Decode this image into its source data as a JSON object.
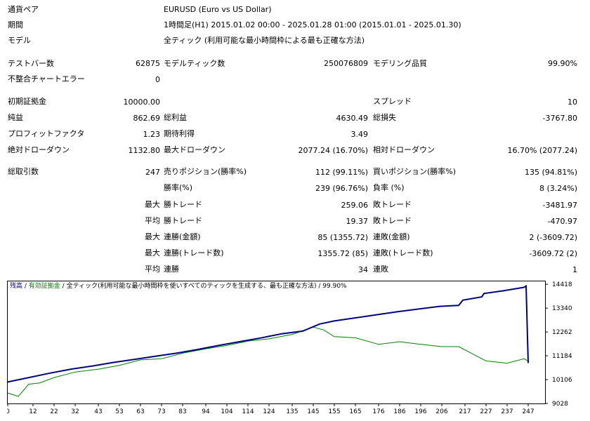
{
  "header": {
    "pair_label": "通貨ペア",
    "pair_value": "EURUSD (Euro vs US Dollar)",
    "period_label": "期間",
    "period_value": "1時間足(H1) 2015.01.02 00:00 - 2025.01.28 01:00 (2015.01.01 - 2025.01.30)",
    "model_label": "モデル",
    "model_value": "全ティック (利用可能な最小時間枠による最も正確な方法)"
  },
  "stats": {
    "bars_label": "テストバー数",
    "bars_value": "62875",
    "ticks_label": "モデルティック数",
    "ticks_value": "250076809",
    "quality_label": "モデリング品質",
    "quality_value": "99.90%",
    "mismatch_label": "不整合チャートエラー",
    "mismatch_value": "0",
    "deposit_label": "初期証拠金",
    "deposit_value": "10000.00",
    "spread_label": "スプレッド",
    "spread_value": "10",
    "net_label": "純益",
    "net_value": "862.69",
    "gross_profit_label": "総利益",
    "gross_profit_value": "4630.49",
    "gross_loss_label": "総損失",
    "gross_loss_value": "-3767.80",
    "pf_label": "プロフィットファクタ",
    "pf_value": "1.23",
    "expected_label": "期待利得",
    "expected_value": "3.49",
    "abs_dd_label": "絶対ドローダウン",
    "abs_dd_value": "1132.80",
    "max_dd_label": "最大ドローダウン",
    "max_dd_value": "2077.24 (16.70%)",
    "rel_dd_label": "相対ドローダウン",
    "rel_dd_value": "16.70% (2077.24)",
    "trades_label": "総取引数",
    "trades_value": "247",
    "short_label": "売りポジション(勝率%)",
    "short_value": "112 (99.11%)",
    "long_label": "買いポジション(勝率%)",
    "long_value": "135 (94.81%)",
    "win_rate_label": "勝率(%)",
    "win_rate_value": "239 (96.76%)",
    "loss_rate_label": "負率 (%)",
    "loss_rate_value": "8 (3.24%)",
    "max_label": "最大",
    "avg_label": "平均",
    "largest_win_label": "勝トレード",
    "largest_win_value": "259.06",
    "largest_loss_label": "敗トレード",
    "largest_loss_value": "-3481.97",
    "avg_win_label": "勝トレード",
    "avg_win_value": "19.37",
    "avg_loss_label": "敗トレード",
    "avg_loss_value": "-470.97",
    "max_cons_wins_label": "連勝(金額)",
    "max_cons_wins_value": "85 (1355.72)",
    "max_cons_losses_label": "連敗(金額)",
    "max_cons_losses_value": "2 (-3609.72)",
    "max_cons_profit_label": "連勝(トレード数)",
    "max_cons_profit_value": "1355.72 (85)",
    "max_cons_loss_label": "連敗(トレード数)",
    "max_cons_loss_value": "-3609.72 (2)",
    "avg_cons_wins_label": "連勝",
    "avg_cons_wins_value": "34",
    "avg_cons_losses_label": "連敗",
    "avg_cons_losses_value": "1"
  },
  "chart_title": {
    "balance": "残高",
    "sep1": " / ",
    "equity": "有効証拠金",
    "sep2": " / ",
    "model": "全ティック(利用可能な最小時間枠を使いすべてのティックを生成する、最も正確な方法)",
    "sep3": " / ",
    "quality": "99.90%"
  },
  "chart_data": {
    "type": "line",
    "xlabel": "",
    "ylabel": "",
    "x_ticks": [
      0,
      12,
      22,
      32,
      43,
      53,
      63,
      73,
      83,
      94,
      104,
      114,
      124,
      135,
      145,
      155,
      165,
      176,
      186,
      196,
      206,
      217,
      227,
      237,
      247
    ],
    "y_ticks": [
      9028,
      10106,
      11184,
      12262,
      13340,
      14418
    ],
    "xlim": [
      0,
      255
    ],
    "ylim": [
      9028,
      14550
    ],
    "grid": false,
    "colors": {
      "balance": "#000080",
      "equity": "#008000"
    },
    "series": [
      {
        "name": "残高",
        "x": [
          0,
          10,
          20,
          30,
          40,
          50,
          60,
          70,
          80,
          90,
          100,
          110,
          120,
          130,
          140,
          148,
          155,
          165,
          175,
          185,
          195,
          205,
          214,
          216,
          225,
          226,
          235,
          245,
          246,
          247
        ],
        "y": [
          10000,
          10200,
          10400,
          10580,
          10720,
          10880,
          11020,
          11160,
          11300,
          11470,
          11650,
          11820,
          11990,
          12180,
          12300,
          12620,
          12760,
          12900,
          13040,
          13180,
          13300,
          13420,
          13460,
          13700,
          13850,
          14000,
          14120,
          14280,
          14340,
          10860
        ]
      },
      {
        "name": "有効証拠金",
        "x": [
          0,
          5,
          10,
          15,
          22,
          32,
          43,
          53,
          63,
          73,
          83,
          94,
          104,
          114,
          124,
          135,
          145,
          150,
          155,
          165,
          176,
          186,
          196,
          206,
          214,
          220,
          227,
          237,
          245,
          247
        ],
        "y": [
          9500,
          9350,
          9900,
          9950,
          10200,
          10450,
          10580,
          10750,
          11000,
          11050,
          11300,
          11500,
          11650,
          11850,
          11950,
          12150,
          12480,
          12350,
          12050,
          12000,
          11700,
          11820,
          11700,
          11600,
          11600,
          11300,
          10950,
          10850,
          11050,
          10950
        ]
      }
    ]
  }
}
